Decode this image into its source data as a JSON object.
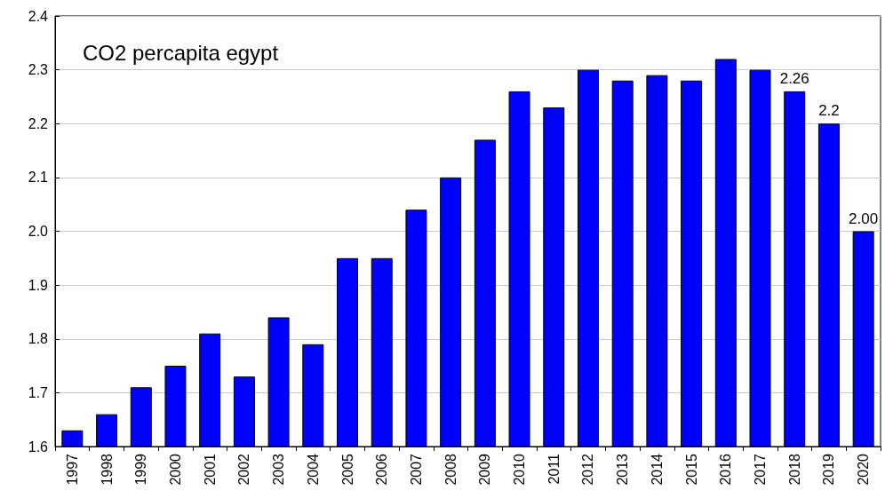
{
  "chart_data": {
    "type": "bar",
    "title": "CO2 percapita egypt",
    "categories": [
      "1997",
      "1998",
      "1999",
      "2000",
      "2001",
      "2002",
      "2003",
      "2004",
      "2005",
      "2006",
      "2007",
      "2008",
      "2009",
      "2010",
      "2011",
      "2012",
      "2013",
      "2014",
      "2015",
      "2016",
      "2017",
      "2018",
      "2019",
      "2020"
    ],
    "values": [
      1.63,
      1.66,
      1.71,
      1.75,
      1.81,
      1.73,
      1.84,
      1.79,
      1.95,
      1.95,
      2.04,
      2.1,
      2.17,
      2.26,
      2.23,
      2.3,
      2.28,
      2.29,
      2.28,
      2.32,
      2.3,
      2.26,
      2.2,
      2.0
    ],
    "value_labels": [
      null,
      null,
      null,
      null,
      null,
      null,
      null,
      null,
      null,
      null,
      null,
      null,
      null,
      null,
      null,
      null,
      null,
      null,
      null,
      null,
      null,
      "2.26",
      "2.2",
      "2.00"
    ],
    "color": "#0000ff",
    "ylim": [
      1.6,
      2.4
    ],
    "yticks": [
      1.6,
      1.7,
      1.8,
      1.9,
      {
        "value": 2,
        "label": "2.0"
      },
      2.1,
      2.2,
      2.3,
      2.4
    ],
    "grid": "y"
  }
}
